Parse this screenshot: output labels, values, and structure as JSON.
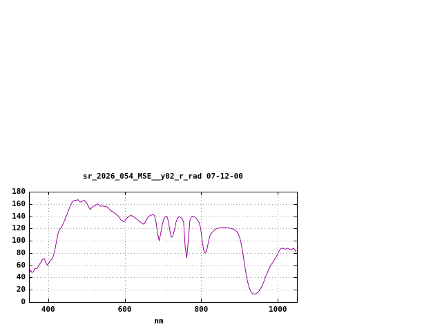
{
  "page": {
    "background": "#ffffff"
  },
  "chart_data": {
    "type": "line",
    "title": "sr_2026_054_MSE__y02_r_rad 07-12-00",
    "xlabel": "nm",
    "ylabel": "",
    "xlim": [
      350,
      1050
    ],
    "ylim": [
      0,
      180
    ],
    "xticks": [
      400,
      600,
      800,
      1000
    ],
    "yticks": [
      0,
      20,
      40,
      60,
      80,
      100,
      120,
      140,
      160,
      180
    ],
    "grid": true,
    "legend": "none",
    "line_color": "#990099",
    "grid_color": "#999999",
    "border_color": "#000000",
    "text_color": "#000000",
    "series": [
      {
        "name": "sr_2026_054_MSE__y02_r_rad",
        "x": [
          350,
          354,
          358,
          362,
          366,
          370,
          374,
          378,
          382,
          386,
          390,
          394,
          398,
          402,
          406,
          410,
          414,
          418,
          422,
          426,
          430,
          434,
          438,
          442,
          446,
          450,
          454,
          458,
          462,
          466,
          470,
          474,
          478,
          482,
          486,
          490,
          494,
          498,
          502,
          506,
          510,
          514,
          518,
          522,
          526,
          530,
          534,
          538,
          542,
          546,
          550,
          554,
          558,
          562,
          566,
          570,
          574,
          578,
          582,
          586,
          590,
          594,
          598,
          602,
          606,
          610,
          614,
          618,
          622,
          626,
          630,
          634,
          638,
          642,
          646,
          650,
          654,
          658,
          662,
          666,
          670,
          674,
          678,
          682,
          686,
          690,
          694,
          698,
          702,
          706,
          710,
          714,
          718,
          722,
          726,
          730,
          734,
          738,
          742,
          746,
          750,
          754,
          758,
          762,
          766,
          770,
          774,
          778,
          782,
          786,
          790,
          794,
          798,
          802,
          806,
          810,
          814,
          818,
          822,
          826,
          830,
          834,
          838,
          842,
          848,
          854,
          860,
          866,
          872,
          878,
          884,
          890,
          896,
          900,
          904,
          908,
          912,
          916,
          920,
          924,
          928,
          932,
          936,
          940,
          944,
          948,
          952,
          956,
          960,
          964,
          968,
          972,
          976,
          980,
          984,
          988,
          992,
          996,
          1000,
          1004,
          1008,
          1012,
          1016,
          1020,
          1024,
          1028,
          1032,
          1036,
          1040,
          1044,
          1048
        ],
        "y": [
          45,
          52,
          48,
          50,
          55,
          54,
          58,
          62,
          66,
          70,
          71,
          64,
          60,
          64,
          68,
          70,
          76,
          86,
          100,
          112,
          119,
          121,
          126,
          132,
          138,
          144,
          151,
          157,
          162,
          165,
          166,
          166,
          167,
          164,
          163,
          165,
          166,
          164,
          160,
          155,
          151,
          154,
          156,
          157,
          159,
          160,
          158,
          156,
          157,
          156,
          156,
          155,
          153,
          150,
          148,
          147,
          145,
          143,
          141,
          138,
          134,
          133,
          131,
          134,
          137,
          139,
          141,
          141,
          140,
          138,
          136,
          134,
          132,
          130,
          128,
          127,
          131,
          136,
          139,
          141,
          142,
          143,
          141,
          130,
          112,
          100,
          112,
          126,
          135,
          139,
          140,
          132,
          116,
          106,
          108,
          118,
          130,
          137,
          139,
          138,
          136,
          130,
          90,
          72,
          100,
          132,
          139,
          140,
          139,
          137,
          134,
          130,
          122,
          103,
          85,
          80,
          84,
          96,
          107,
          112,
          115,
          117,
          119,
          120,
          121,
          121,
          122,
          121,
          121,
          120,
          119,
          117,
          112,
          106,
          96,
          82,
          66,
          50,
          36,
          26,
          19,
          15,
          13,
          13,
          14,
          16,
          19,
          23,
          28,
          34,
          41,
          47,
          53,
          58,
          62,
          66,
          70,
          74,
          79,
          84,
          87,
          88,
          87,
          86,
          88,
          87,
          86,
          85,
          88,
          86,
          81
        ]
      }
    ]
  }
}
